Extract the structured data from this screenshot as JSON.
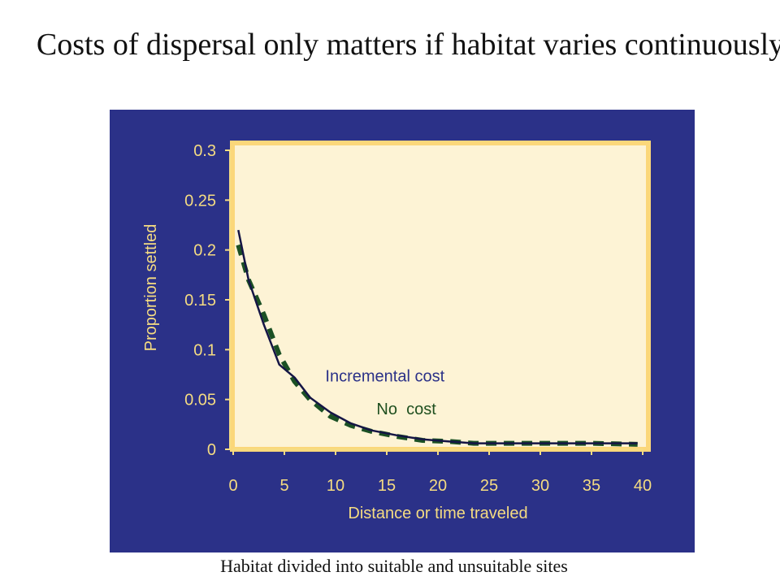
{
  "slide": {
    "title": "Costs of dispersal only matters if habitat varies continuously",
    "caption": "Habitat divided into suitable and unsuitable sites"
  },
  "colors": {
    "panel_bg": "#2b3188",
    "plot_bg": "#fdf3d5",
    "plot_border": "#fbd77a",
    "axis_text": "#f5dc82",
    "incremental_line": "#151545",
    "no_cost_line": "#1b5024",
    "incremental_label": "#2b3188",
    "no_cost_label": "#1f4f1f"
  },
  "chart_data": {
    "type": "line",
    "xlabel": "Distance or time traveled",
    "ylabel": "Proportion settled",
    "xlim": [
      0,
      40
    ],
    "ylim": [
      0,
      0.3
    ],
    "x_ticks": [
      "0",
      "5",
      "10",
      "15",
      "20",
      "25",
      "30",
      "35",
      "40"
    ],
    "y_ticks": [
      "0",
      "0.05",
      "0.1",
      "0.15",
      "0.2",
      "0.25",
      "0.3"
    ],
    "grid": false,
    "series": [
      {
        "name": "Incremental cost",
        "style": "solid",
        "x": [
          0.5,
          1.5,
          3,
          4.5,
          6,
          7.5,
          9.5,
          11.5,
          13.5,
          16,
          18.5,
          21,
          23.5,
          27,
          31,
          35,
          39.5
        ],
        "y": [
          0.22,
          0.17,
          0.125,
          0.085,
          0.072,
          0.052,
          0.037,
          0.026,
          0.019,
          0.014,
          0.01,
          0.008,
          0.006,
          0.006,
          0.006,
          0.006,
          0.006
        ]
      },
      {
        "name": "No  cost",
        "style": "dashed",
        "x": [
          0.5,
          1.5,
          3,
          4.5,
          6,
          7.5,
          9.5,
          11.5,
          13.5,
          16,
          18.5,
          21,
          23.5,
          27,
          31,
          35,
          39.5
        ],
        "y": [
          0.205,
          0.17,
          0.135,
          0.095,
          0.068,
          0.05,
          0.033,
          0.024,
          0.018,
          0.013,
          0.009,
          0.008,
          0.006,
          0.006,
          0.006,
          0.006,
          0.005
        ]
      }
    ],
    "annotations": [
      {
        "text": "Incremental cost",
        "series": "Incremental cost",
        "at": [
          9,
          0.068
        ]
      },
      {
        "text": "No  cost",
        "series": "No  cost",
        "at": [
          14,
          0.035
        ]
      }
    ]
  }
}
